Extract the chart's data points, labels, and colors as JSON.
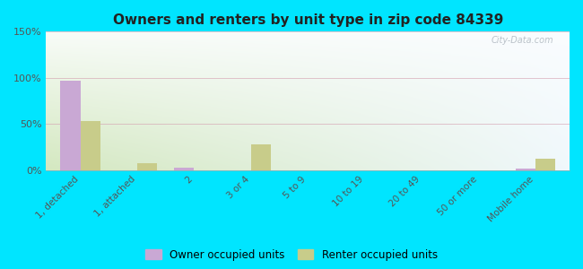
{
  "title": "Owners and renters by unit type in zip code 84339",
  "categories": [
    "1, detached",
    "1, attached",
    "2",
    "3 or 4",
    "5 to 9",
    "10 to 19",
    "20 to 49",
    "50 or more",
    "Mobile home"
  ],
  "owner_values": [
    97,
    0,
    3,
    0,
    0,
    0,
    0,
    0,
    2
  ],
  "renter_values": [
    53,
    7,
    0,
    28,
    0,
    0,
    0,
    0,
    12
  ],
  "owner_color": "#c9a8d4",
  "renter_color": "#c8cc8a",
  "ylim": [
    0,
    150
  ],
  "yticks": [
    0,
    50,
    100,
    150
  ],
  "ytick_labels": [
    "0%",
    "50%",
    "100%",
    "150%"
  ],
  "bg_bottom": "#d4e8c0",
  "bg_top": "#f0f8f0",
  "bg_right": "#e8f4f8",
  "outer_bg": "#00e5ff",
  "watermark": "City-Data.com",
  "bar_width": 0.35,
  "legend_labels": [
    "Owner occupied units",
    "Renter occupied units"
  ],
  "figsize": [
    6.5,
    3.0
  ],
  "dpi": 100
}
